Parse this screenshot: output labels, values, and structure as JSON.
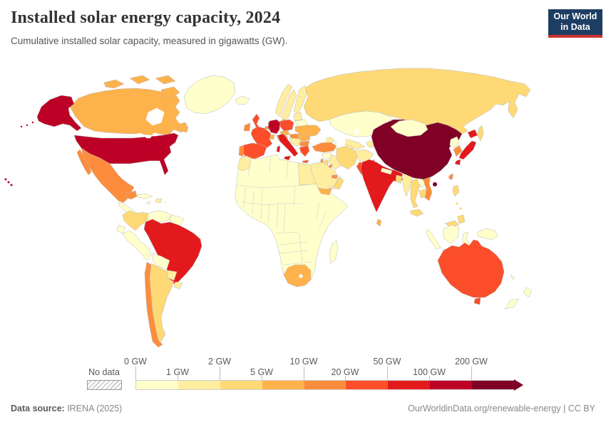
{
  "header": {
    "title": "Installed solar energy capacity, 2024",
    "subtitle": "Cumulative installed solar capacity, measured in gigawatts (GW).",
    "logo": {
      "line1": "Our World",
      "line2": "in Data",
      "bg_color": "#1d3d63",
      "accent_color": "#c9322f"
    }
  },
  "legend": {
    "no_data_label": "No data",
    "tick_labels": [
      "0 GW",
      "1 GW",
      "2 GW",
      "5 GW",
      "10 GW",
      "20 GW",
      "50 GW",
      "100 GW",
      "200 GW"
    ],
    "colors": [
      "#ffffcc",
      "#ffeda0",
      "#fed976",
      "#feb24c",
      "#fd8d3c",
      "#fc4e2a",
      "#e31a1c",
      "#bd0026",
      "#800026"
    ]
  },
  "footer": {
    "source_label": "Data source:",
    "source_value": " IRENA (2025)",
    "link": "OurWorldinData.org/renewable-energy | CC BY"
  },
  "chart_data": {
    "type": "choropleth",
    "title": "Installed solar energy capacity, 2024",
    "unit": "GW",
    "legend_position": "bottom",
    "bins": [
      {
        "range": "0-1 GW",
        "color": "#ffffcc"
      },
      {
        "range": "1-2 GW",
        "color": "#ffeda0"
      },
      {
        "range": "2-5 GW",
        "color": "#fed976"
      },
      {
        "range": "5-10 GW",
        "color": "#feb24c"
      },
      {
        "range": "10-20 GW",
        "color": "#fd8d3c"
      },
      {
        "range": "20-50 GW",
        "color": "#fc4e2a"
      },
      {
        "range": "50-100 GW",
        "color": "#e31a1c"
      },
      {
        "range": "100-200 GW",
        "color": "#bd0026"
      },
      {
        "range": "200+ GW",
        "color": "#800026"
      }
    ],
    "countries": {
      "greenland": "#ffffcc",
      "canada": "#feb24c",
      "united-states": "#bd0026",
      "mexico": "#fd8d3c",
      "central-america": "#ffffcc",
      "cuba": "#ffffcc",
      "hispaniola": "#ffeda0",
      "jamaica": "#ffffcc",
      "puerto-rico": "#ffeda0",
      "bahamas": "#ffffcc",
      "colombia": "#fed976",
      "venezuela": "#ffffcc",
      "guyana": "#ffffcc",
      "ecuador": "#ffffcc",
      "peru": "#ffffcc",
      "brazil": "#e31a1c",
      "bolivia": "#ffffcc",
      "paraguay": "#ffeda0",
      "uruguay": "#ffeda0",
      "argentina": "#fed976",
      "chile": "#fd8d3c",
      "falkland-islands": "#ffffcc",
      "iceland": "#ffffcc",
      "norway": "#ffeda0",
      "sweden": "#ffeda0",
      "finland": "#ffeda0",
      "denmark": "#feb24c",
      "baltic-states": "#ffeda0",
      "belarus": "#ffffcc",
      "united-kingdom": "#fc4e2a",
      "ireland": "#fd8d3c",
      "netherlands": "#e31a1c",
      "belgium": "#fd8d3c",
      "germany": "#bd0026",
      "poland": "#fc4e2a",
      "czechia": "#feb24c",
      "austria": "#fd8d3c",
      "switzerland": "#feb24c",
      "france": "#fc4e2a",
      "spain": "#fc4e2a",
      "portugal": "#fd8d3c",
      "italy": "#e31a1c",
      "balkans": "#ffeda0",
      "hungary": "#fd8d3c",
      "romania": "#feb24c",
      "bulgaria": "#fd8d3c",
      "greece": "#fc4e2a",
      "ukraine": "#feb24c",
      "russia": "#fed976",
      "kazakhstan": "#ffffcc",
      "uzbekistan": "#ffeda0",
      "turkmenistan": "#ffeda0",
      "kyrgyzstan-tajikistan": "#ffeda0",
      "caucasus": "#ffeda0",
      "turkey": "#fd8d3c",
      "syria": "#ffffcc",
      "iraq": "#ffeda0",
      "israel": "#fd8d3c",
      "jordan": "#fed976",
      "iran": "#fed976",
      "afghanistan": "#ffeda0",
      "pakistan": "#fc4e2a",
      "saudi-arabia": "#ffeda0",
      "yemen": "#feb24c",
      "oman": "#fed976",
      "united-arab-emirates": "#fd8d3c",
      "kuwait": "#fd8d3c",
      "india": "#e31a1c",
      "nepal": "#ffffcc",
      "bangladesh": "#fed976",
      "sri-lanka": "#feb24c",
      "myanmar": "#ffeda0",
      "thailand": "#fed976",
      "laos": "#ffffcc",
      "cambodia": "#fed976",
      "vietnam": "#fd8d3c",
      "malaysia": "#fed976",
      "china": "#800026",
      "mongolia": "#ffffcc",
      "taiwan": "#fd8d3c",
      "north-korea": "#ffffcc",
      "south-korea": "#fd8d3c",
      "japan": "#e31a1c",
      "philippines": "#fed976",
      "indonesia": "#ffffcc",
      "papua-new-guinea": "#ffffcc",
      "australia": "#fc4e2a",
      "new-zealand": "#ffffcc",
      "pacific-islands": "#ffffcc",
      "africa-other": "#ffffcc",
      "morocco": "#ffeda0",
      "egypt": "#ffeda0",
      "south-africa": "#feb24c",
      "madagascar": "#ffffcc"
    }
  }
}
